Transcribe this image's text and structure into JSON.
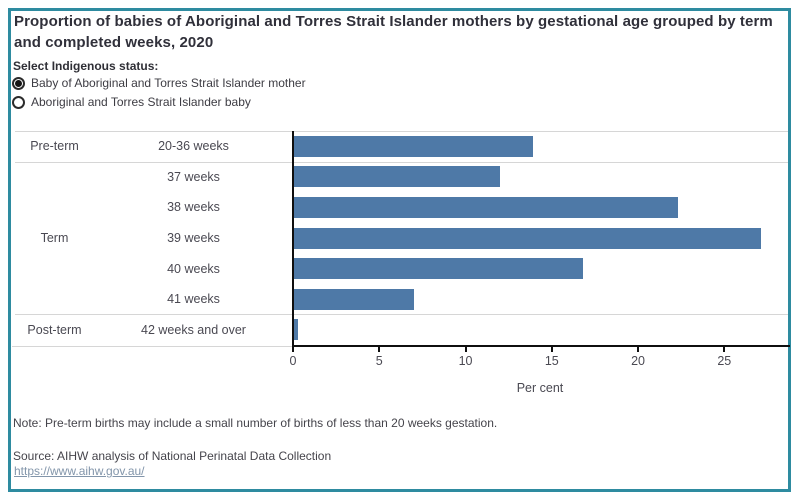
{
  "title": "Proportion of babies of Aboriginal and Torres Strait Islander mothers by gestational age grouped by term and completed weeks, 2020",
  "filter": {
    "label": "Select Indigenous status:",
    "options": [
      {
        "label": "Baby of Aboriginal and Torres Strait Islander mother",
        "selected": true
      },
      {
        "label": "Aboriginal and Torres Strait Islander baby",
        "selected": false
      }
    ]
  },
  "chart_data": {
    "type": "bar",
    "orientation": "horizontal",
    "title": "Proportion of babies of Aboriginal and Torres Strait Islander mothers by gestational age grouped by term and completed weeks, 2020",
    "xlabel": "Per cent",
    "x_ticks": [
      0,
      5,
      10,
      15,
      20,
      25
    ],
    "x_max": 28.75,
    "grid": false,
    "bar_color": "#4e79a7",
    "groups": [
      {
        "term": "Pre-term",
        "rows": [
          {
            "label": "20-36 weeks",
            "value": 13.9
          }
        ]
      },
      {
        "term": "Term",
        "rows": [
          {
            "label": "37 weeks",
            "value": 12.0
          },
          {
            "label": "38 weeks",
            "value": 22.3
          },
          {
            "label": "39 weeks",
            "value": 27.1
          },
          {
            "label": "40 weeks",
            "value": 16.8
          },
          {
            "label": "41 weeks",
            "value": 7.0
          }
        ]
      },
      {
        "term": "Post-term",
        "rows": [
          {
            "label": "42 weeks and over",
            "value": 0.3
          }
        ]
      }
    ]
  },
  "note": "Note: Pre-term births may include a small number of births of less than 20 weeks gestation.",
  "source_line": "Source:  AIHW analysis of National Perinatal Data Collection",
  "link": "https://www.aihw.gov.au/",
  "colors": {
    "border": "#2e8ba0",
    "bar": "#4e79a7",
    "link": "#8295aa"
  }
}
